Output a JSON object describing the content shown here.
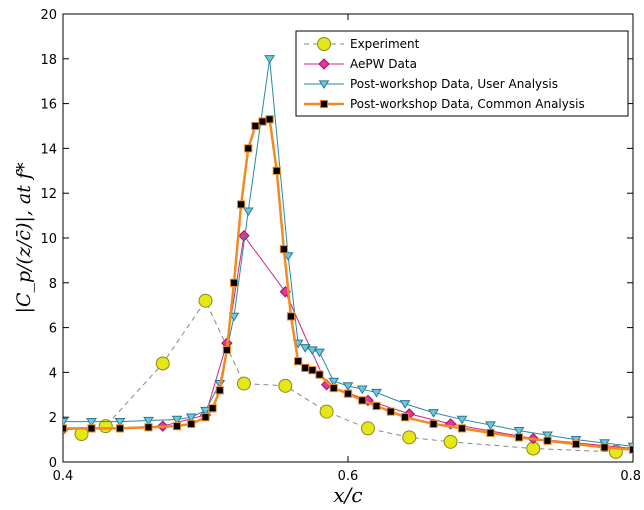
{
  "chart_data": {
    "type": "line",
    "title": "",
    "xlabel": "x/c",
    "ylabel": "|C_p/(z/c̄)|, at f*",
    "xlim": [
      0.4,
      0.8
    ],
    "ylim": [
      0,
      20
    ],
    "xticks": [
      "0.4",
      "0.6",
      "0.8"
    ],
    "yticks": [
      "0",
      "2",
      "4",
      "6",
      "8",
      "10",
      "12",
      "14",
      "16",
      "18",
      "20"
    ],
    "grid": false,
    "legend_position": "top-right",
    "series": [
      {
        "name": "Experiment",
        "color": "#888888",
        "marker": "circle",
        "marker_color": "#e6e619",
        "line_style": "dashed",
        "x": [
          0.413,
          0.43,
          0.47,
          0.5,
          0.527,
          0.556,
          0.585,
          0.614,
          0.643,
          0.672,
          0.73,
          0.788
        ],
        "y": [
          1.25,
          1.6,
          4.4,
          7.2,
          3.5,
          3.4,
          2.25,
          1.5,
          1.1,
          0.9,
          0.6,
          0.45
        ]
      },
      {
        "name": "AePW Data",
        "color": "#d4228c",
        "marker": "diamond",
        "marker_color": "#e8349a",
        "line_style": "solid",
        "x": [
          0.4,
          0.47,
          0.5,
          0.515,
          0.527,
          0.556,
          0.585,
          0.614,
          0.643,
          0.672,
          0.73,
          0.8
        ],
        "y": [
          1.45,
          1.6,
          2.1,
          5.3,
          10.1,
          7.6,
          3.45,
          2.75,
          2.15,
          1.7,
          1.05,
          0.6
        ]
      },
      {
        "name": "Post-workshop Data, User Analysis",
        "color": "#2a8a9e",
        "marker": "triangle-down",
        "marker_color": "#6fc6e0",
        "line_style": "solid",
        "x": [
          0.4,
          0.42,
          0.44,
          0.46,
          0.48,
          0.49,
          0.5,
          0.51,
          0.52,
          0.53,
          0.545,
          0.558,
          0.565,
          0.57,
          0.575,
          0.58,
          0.59,
          0.6,
          0.61,
          0.62,
          0.64,
          0.66,
          0.68,
          0.7,
          0.72,
          0.74,
          0.76,
          0.78,
          0.8
        ],
        "y": [
          1.8,
          1.8,
          1.8,
          1.85,
          1.9,
          2.0,
          2.3,
          3.5,
          6.5,
          11.2,
          18.0,
          9.2,
          5.3,
          5.1,
          5.0,
          4.9,
          3.6,
          3.4,
          3.25,
          3.1,
          2.6,
          2.2,
          1.9,
          1.65,
          1.4,
          1.2,
          1.0,
          0.85,
          0.7
        ]
      },
      {
        "name": "Post-workshop Data, Common Analysis",
        "color": "#f08a24",
        "marker": "square",
        "marker_color": "#000000",
        "line_style": "solid",
        "x": [
          0.4,
          0.42,
          0.44,
          0.46,
          0.48,
          0.49,
          0.5,
          0.505,
          0.51,
          0.515,
          0.52,
          0.525,
          0.53,
          0.535,
          0.54,
          0.545,
          0.55,
          0.555,
          0.56,
          0.565,
          0.57,
          0.575,
          0.58,
          0.59,
          0.6,
          0.61,
          0.62,
          0.63,
          0.64,
          0.66,
          0.68,
          0.7,
          0.72,
          0.74,
          0.76,
          0.78,
          0.8
        ],
        "y": [
          1.5,
          1.5,
          1.5,
          1.55,
          1.6,
          1.7,
          2.0,
          2.4,
          3.2,
          5.0,
          8.0,
          11.5,
          14.0,
          15.0,
          15.2,
          15.3,
          13.0,
          9.5,
          6.5,
          4.5,
          4.2,
          4.1,
          3.9,
          3.3,
          3.05,
          2.75,
          2.5,
          2.25,
          2.0,
          1.7,
          1.5,
          1.3,
          1.1,
          0.95,
          0.8,
          0.65,
          0.55
        ]
      }
    ]
  }
}
